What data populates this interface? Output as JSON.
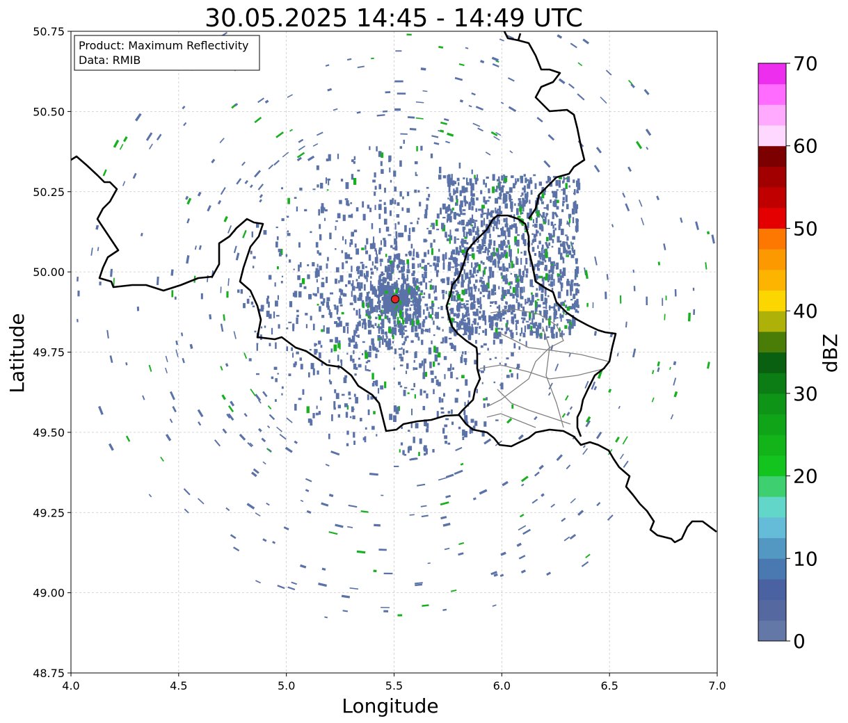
{
  "title": "30.05.2025 14:45 - 14:49 UTC",
  "info_box": {
    "product": "Product: Maximum Reflectivity",
    "data": "Data: RMIB"
  },
  "x_axis": {
    "label": "Longitude",
    "ticks": [
      "4.0",
      "4.5",
      "5.0",
      "5.5",
      "6.0",
      "6.5",
      "7.0"
    ],
    "range": [
      4.0,
      7.0
    ]
  },
  "y_axis": {
    "label": "Latitude",
    "ticks": [
      "48.75",
      "49.00",
      "49.25",
      "49.50",
      "49.75",
      "50.00",
      "50.25",
      "50.50",
      "50.75"
    ],
    "range": [
      48.75,
      50.75
    ]
  },
  "grid": true,
  "radar_site": {
    "lon": 5.505,
    "lat": 49.915,
    "color": "#e8231f"
  },
  "colorbar": {
    "label": "dBZ",
    "ticks": [
      "0",
      "10",
      "20",
      "30",
      "40",
      "50",
      "60",
      "70"
    ],
    "range": [
      0,
      70
    ],
    "step": 2.5,
    "colors": [
      "#6478a8",
      "#5668a0",
      "#4a62a2",
      "#4a78b0",
      "#5298c2",
      "#64bcd8",
      "#62d6c8",
      "#3ed070",
      "#14c41e",
      "#12b41a",
      "#10a418",
      "#0e9416",
      "#0c7c14",
      "#086010",
      "#4a7c08",
      "#aeb208",
      "#fcd600",
      "#fcb400",
      "#fc9800",
      "#fc7800",
      "#e40000",
      "#c00000",
      "#a20000",
      "#7c0000",
      "#ffd8ff",
      "#ffaaff",
      "#ff6cff",
      "#ee2eee"
    ]
  },
  "map_layers": {
    "national_border_color": "#000000",
    "regional_border_color": "#808080",
    "echo_color_dominant": "#5a72a8",
    "echo_color_strong": "#18b020"
  }
}
